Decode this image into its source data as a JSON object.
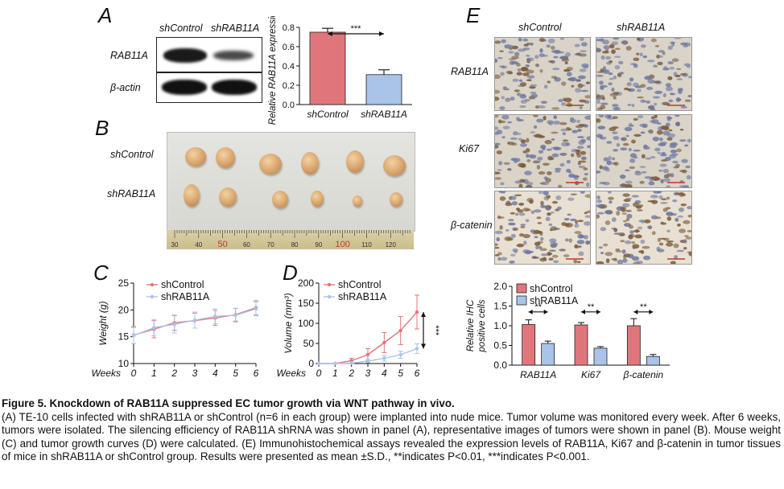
{
  "panels": {
    "A": {
      "letter": "A",
      "lanes": [
        "shControl",
        "shRAB11A"
      ],
      "rows": [
        "RAB11A",
        "β-actin"
      ],
      "chart_data": {
        "type": "bar",
        "categories": [
          "shControl",
          "shRAB11A"
        ],
        "values": [
          0.75,
          0.31
        ],
        "errors": [
          0.04,
          0.05
        ],
        "colors": [
          "#e0767c",
          "#a9c4e8"
        ],
        "ylabel": "Relative RAB11A expression",
        "ylim": [
          0,
          0.8
        ],
        "yticks": [
          "0.0",
          "0.2",
          "0.4",
          "0.6",
          "0.8"
        ],
        "significance": "***"
      }
    },
    "B": {
      "letter": "B",
      "rows": [
        "shControl",
        "shRAB11A"
      ],
      "ruler_marks": [
        "30",
        "40",
        "50",
        "60",
        "70",
        "80",
        "90",
        "100",
        "110",
        "120"
      ]
    },
    "C": {
      "letter": "C",
      "chart_data": {
        "type": "line",
        "x": [
          0,
          1,
          2,
          3,
          4,
          5,
          6
        ],
        "xlabel": "Weeks",
        "ylabel": "Weight (g)",
        "ylim": [
          10,
          25
        ],
        "yticks": [
          "10",
          "15",
          "20",
          "25"
        ],
        "xticks": [
          "0",
          "1",
          "2",
          "3",
          "4",
          "5",
          "6"
        ],
        "series": [
          {
            "name": "shControl",
            "color": "#e0767c",
            "values": [
              15.3,
              16.4,
              17.6,
              18.0,
              18.5,
              19.1,
              20.4
            ],
            "errors": [
              1.6,
              1.6,
              1.4,
              1.4,
              1.4,
              1.2,
              1.3
            ]
          },
          {
            "name": "shRAB11A",
            "color": "#a9c4e8",
            "values": [
              15.2,
              16.7,
              17.3,
              18.1,
              18.8,
              19.0,
              20.2
            ],
            "errors": [
              1.5,
              1.5,
              1.6,
              1.5,
              1.4,
              1.3,
              1.3
            ]
          }
        ]
      }
    },
    "D": {
      "letter": "D",
      "chart_data": {
        "type": "line",
        "x": [
          0,
          1,
          2,
          3,
          4,
          5,
          6
        ],
        "xlabel": "Weeks",
        "ylabel": "Volume (mm³)",
        "ylim": [
          0,
          200
        ],
        "yticks": [
          "0",
          "50",
          "100",
          "150",
          "200"
        ],
        "xticks": [
          "0",
          "1",
          "2",
          "3",
          "4",
          "5",
          "6"
        ],
        "significance": "***",
        "series": [
          {
            "name": "shControl",
            "color": "#e0767c",
            "values": [
              0,
              0,
              7,
              22,
              52,
              82,
              128
            ],
            "errors": [
              0,
              0,
              6,
              15,
              25,
              35,
              42
            ]
          },
          {
            "name": "shRAB11A",
            "color": "#a9c4e8",
            "values": [
              0,
              0,
              1,
              6,
              13,
              22,
              37
            ],
            "errors": [
              0,
              0,
              1,
              4,
              7,
              9,
              12
            ]
          }
        ]
      }
    },
    "E": {
      "letter": "E",
      "columns": [
        "shControl",
        "shRAB11A"
      ],
      "rows": [
        "RAB11A",
        "Ki67",
        "β-catenin"
      ],
      "chart_data": {
        "type": "bar",
        "categories": [
          "RAB11A",
          "Ki67",
          "β-catenin"
        ],
        "ylabel": "Relative IHC positive cells",
        "ylim": [
          0,
          2.0
        ],
        "yticks": [
          "0.0",
          "0.5",
          "1.0",
          "1.5",
          "2.0"
        ],
        "significance": [
          "**",
          "**",
          "**"
        ],
        "series": [
          {
            "name": "shControl",
            "color": "#e0767c",
            "values": [
              1.03,
              1.02,
              1.0
            ],
            "errors": [
              0.12,
              0.06,
              0.18
            ]
          },
          {
            "name": "shRAB11A",
            "color": "#a9c4e8",
            "values": [
              0.55,
              0.43,
              0.22
            ],
            "errors": [
              0.06,
              0.04,
              0.05
            ]
          }
        ]
      }
    }
  },
  "caption": {
    "title": "Figure 5. Knockdown of RAB11A suppressed EC tumor growth via WNT pathway in vivo.",
    "body": "(A) TE-10 cells infected with shRAB11A or shControl (n=6 in each group) were implanted into nude mice. Tumor volume was monitored every week. After 6 weeks, tumors were isolated. The silencing efficiency of RAB11A shRNA was shown in panel (A), representative images of tumors were shown in panel (B). Mouse weight (C) and tumor growth curves (D) were calculated. (E) Immunohistochemical assays revealed the expression levels of RAB11A, Ki67 and β-catenin in tumor tissues of mice in shRAB11A or shControl group. Results were presented as mean ±S.D., **indicates P<0.01, ***indicates P<0.001."
  }
}
